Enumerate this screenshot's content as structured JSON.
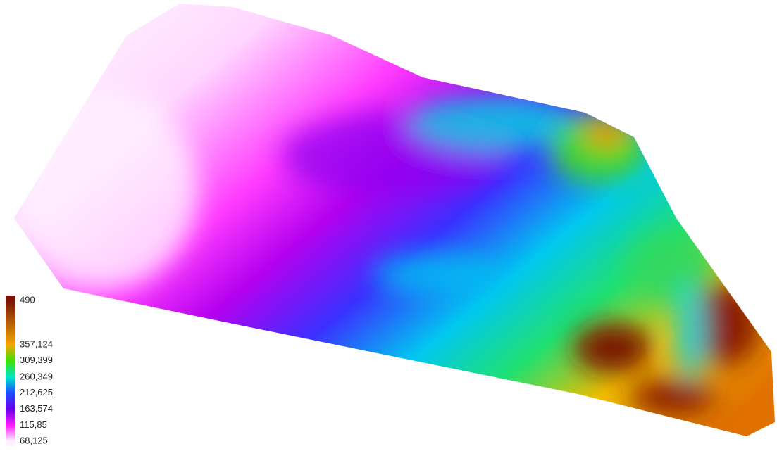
{
  "legend": {
    "stops": [
      {
        "value": 490,
        "label": "490",
        "color": "#7a1206"
      },
      {
        "value": 357.124,
        "label": "357,124",
        "color": "#f7a400"
      },
      {
        "value": 309.399,
        "label": "309,399",
        "color": "#3fe000"
      },
      {
        "value": 260.349,
        "label": "260,349",
        "color": "#00e6c8"
      },
      {
        "value": 212.625,
        "label": "212,625",
        "color": "#1f4cff"
      },
      {
        "value": 163.574,
        "label": "163,574",
        "color": "#6a00e6"
      },
      {
        "value": 115.85,
        "label": "115,85",
        "color": "#ff1cff"
      },
      {
        "value": 68.125,
        "label": "68,125",
        "color": "#fff0ff"
      }
    ]
  }
}
